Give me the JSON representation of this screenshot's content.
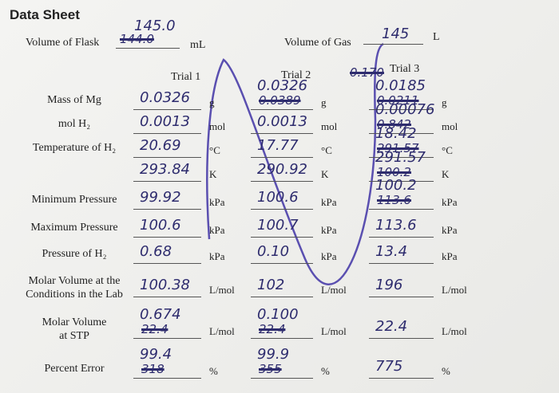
{
  "header": {
    "title": "Data Sheet"
  },
  "flask": {
    "label": "Volume of Flask",
    "value": "145.0",
    "struck": "144.0",
    "unit": "mL"
  },
  "gas": {
    "label": "Volume of Gas",
    "value": "145",
    "unit": "L"
  },
  "trials": [
    "Trial 1",
    "Trial 2",
    "Trial 3"
  ],
  "trial3_struck": "0.170",
  "rows": [
    {
      "label": "Mass of Mg",
      "cells": [
        {
          "value": "0.0326",
          "unit": "g"
        },
        {
          "value": "0.0326",
          "struck": "0.0389",
          "unit": "g"
        },
        {
          "value": "0.0185",
          "struck": "0.0211",
          "unit": "g"
        }
      ]
    },
    {
      "label": "mol H₂",
      "cells": [
        {
          "value": "0.0013",
          "unit": "mol"
        },
        {
          "value": "0.0013",
          "unit": "mol"
        },
        {
          "value": "0.00076",
          "struck": "0.842",
          "unit": "mol"
        }
      ]
    },
    {
      "label": "Temperature of H₂",
      "cells": [
        {
          "value": "20.69",
          "unit": "°C"
        },
        {
          "value": "17.77",
          "unit": "°C"
        },
        {
          "value": "18.42",
          "struck": "291.57",
          "unit": "°C"
        }
      ]
    },
    {
      "label": "",
      "cells": [
        {
          "value": "293.84",
          "unit": "K"
        },
        {
          "value": "290.92",
          "unit": "K"
        },
        {
          "value": "291.57",
          "struck": "100.2",
          "unit": "K"
        }
      ]
    },
    {
      "label": "Minimum Pressure",
      "cells": [
        {
          "value": "99.92",
          "unit": "kPa"
        },
        {
          "value": "100.6",
          "unit": "kPa"
        },
        {
          "value": "100.2",
          "struck": "113.6",
          "unit": "kPa"
        }
      ]
    },
    {
      "label": "Maximum Pressure",
      "cells": [
        {
          "value": "100.6",
          "unit": "kPa"
        },
        {
          "value": "100.7",
          "unit": "kPa"
        },
        {
          "value": "113.6",
          "unit": "kPa"
        }
      ]
    },
    {
      "label": "Pressure of H₂",
      "cells": [
        {
          "value": "0.68",
          "unit": "kPa"
        },
        {
          "value": "0.10",
          "unit": "kPa"
        },
        {
          "value": "13.4",
          "unit": "kPa"
        }
      ]
    },
    {
      "label": "Molar Volume at the\nConditions in the Lab",
      "cells": [
        {
          "value": "100.38",
          "unit": "L/mol"
        },
        {
          "value": "102",
          "unit": "L/mol"
        },
        {
          "value": "196",
          "unit": "L/mol"
        }
      ]
    },
    {
      "label": "Molar Volume\nat STP",
      "cells": [
        {
          "value": "0.674",
          "struck": "22.4",
          "unit": "L/mol"
        },
        {
          "value": "0.100",
          "struck": "22.4",
          "unit": "L/mol"
        },
        {
          "value": "22.4",
          "unit": "L/mol"
        }
      ]
    },
    {
      "label": "Percent Error",
      "cells": [
        {
          "value": "99.4",
          "struck": "318",
          "unit": "%"
        },
        {
          "value": "99.9",
          "struck": "355",
          "unit": "%"
        },
        {
          "value": "775",
          "unit": "%"
        }
      ]
    }
  ]
}
